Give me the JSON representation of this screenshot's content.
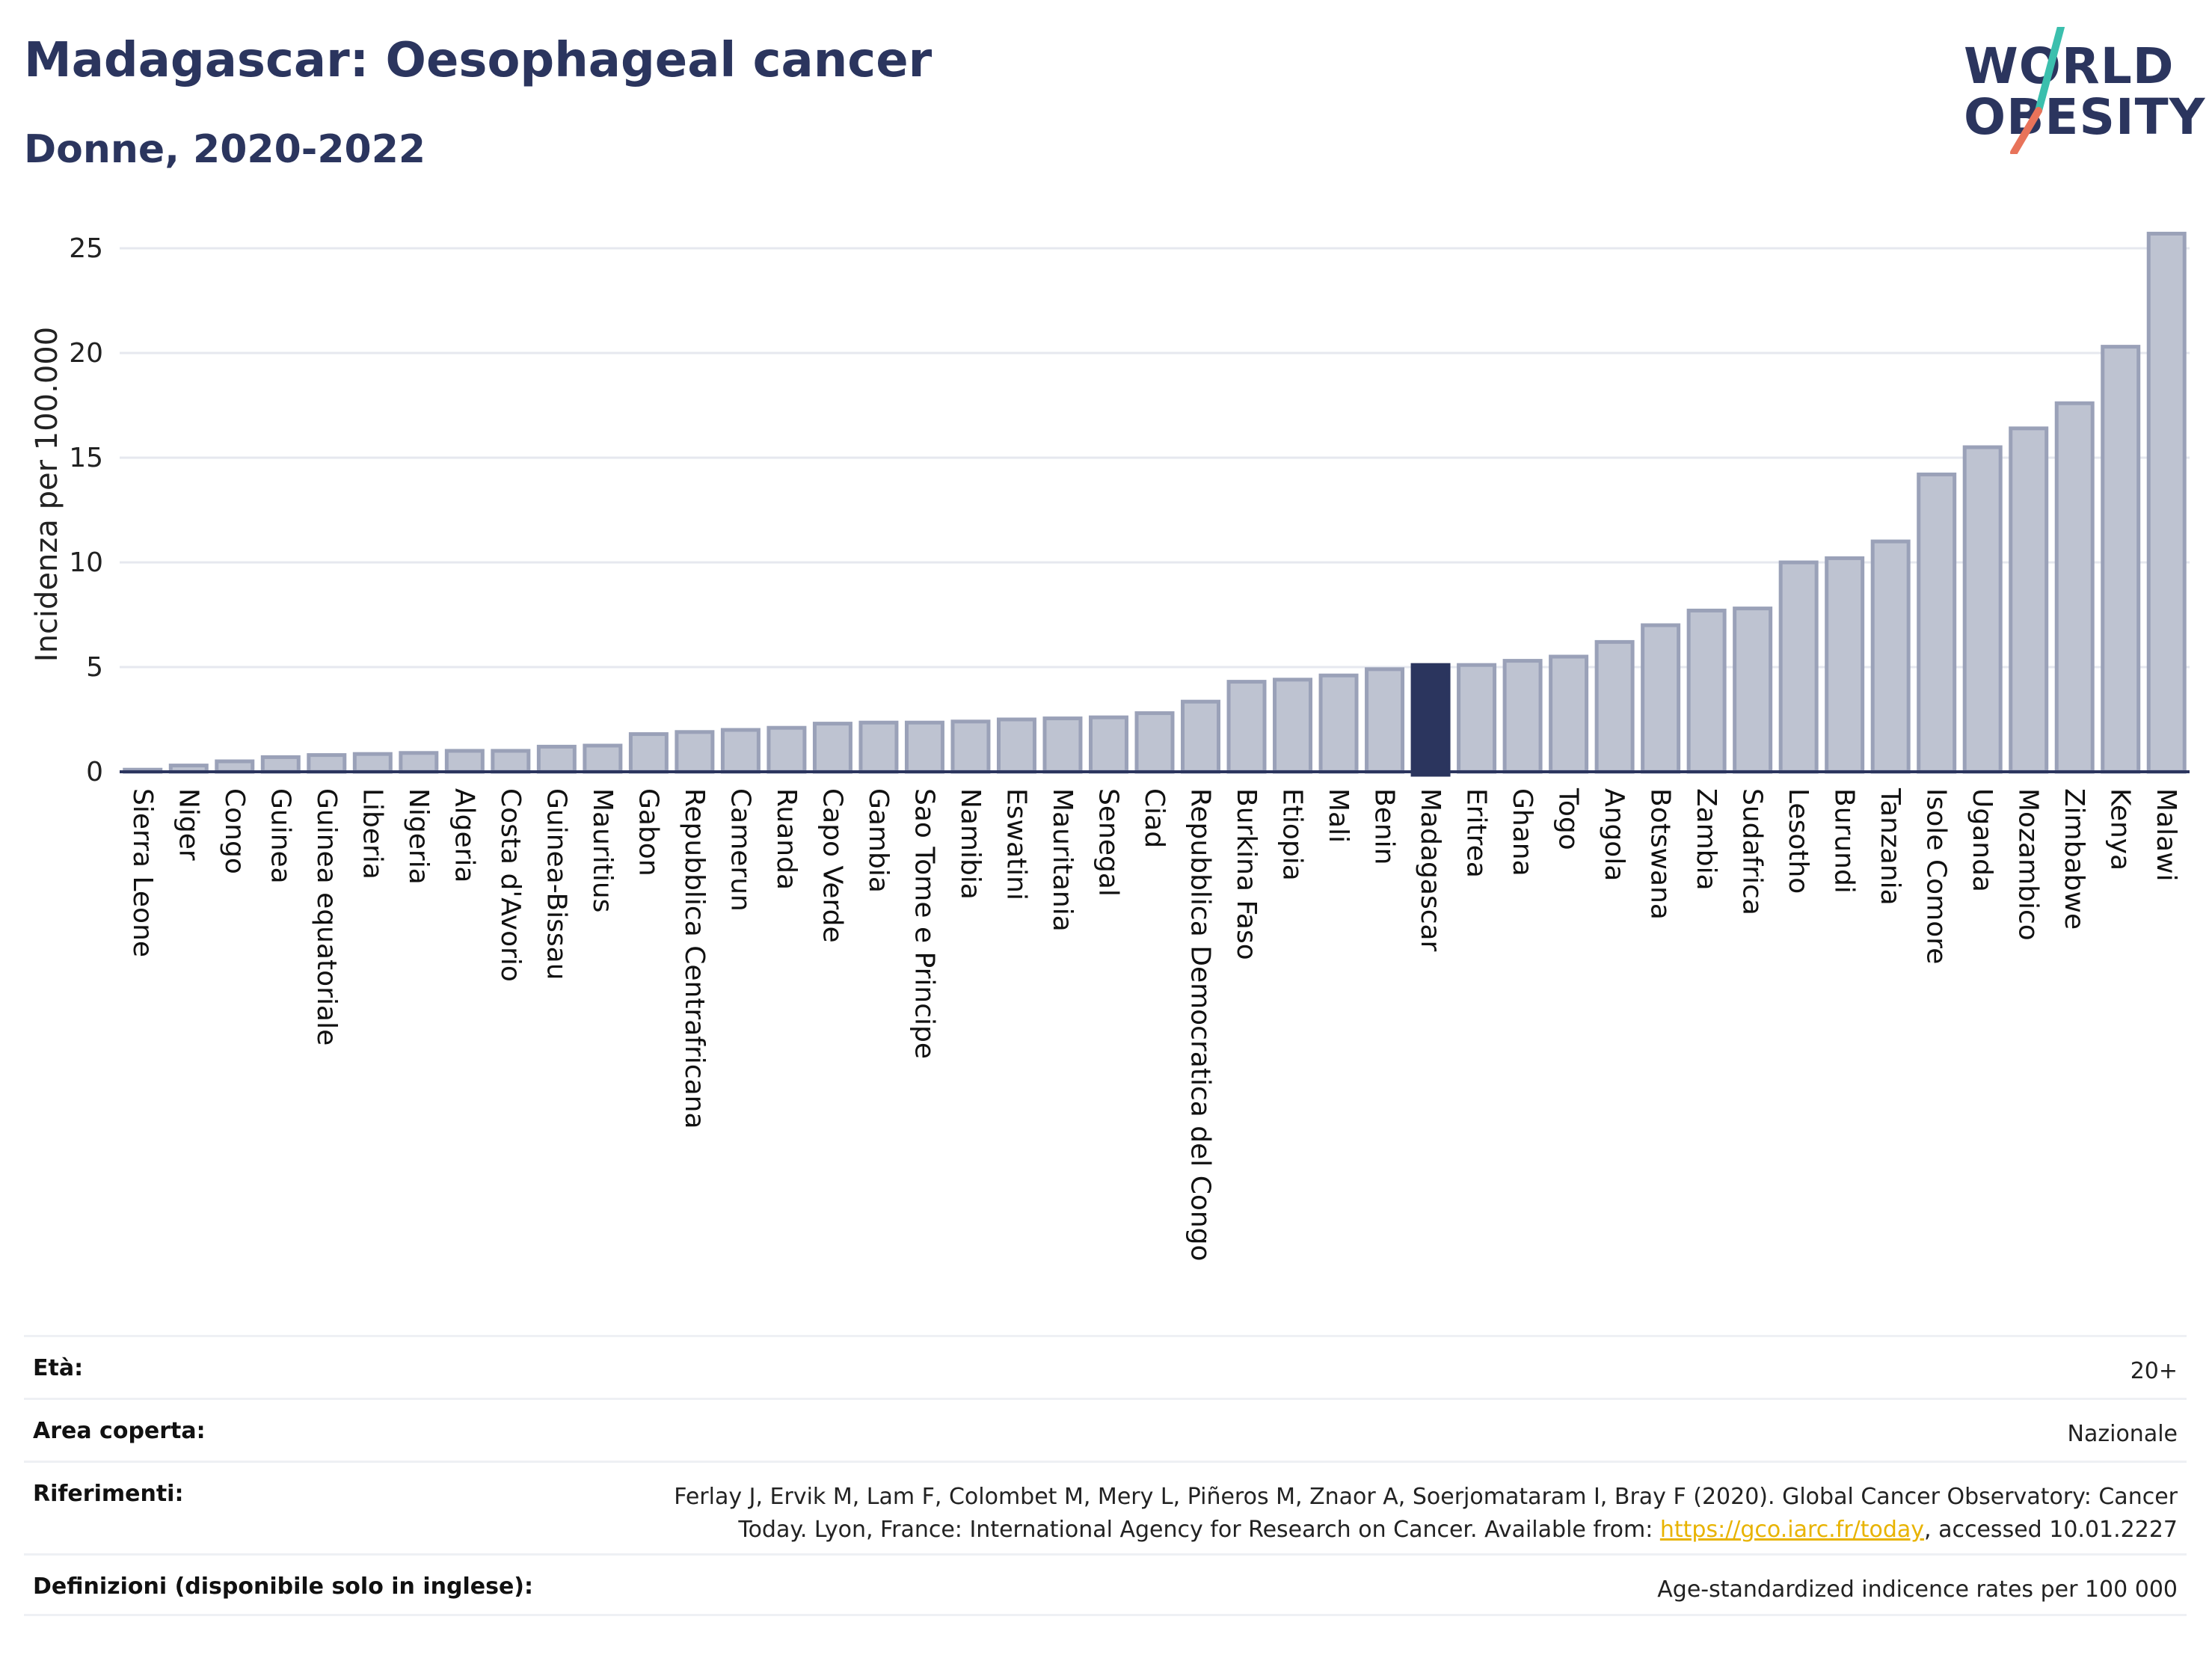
{
  "header": {
    "title": "Madagascar: Oesophageal cancer",
    "subtitle": "Donne, 2020-2022"
  },
  "logo": {
    "line1": "WORLD",
    "line2": "OBESITY"
  },
  "colors": {
    "bar_fill": "#bec3d1",
    "bar_stroke": "#9aa1b8",
    "highlight": "#2b355e",
    "slash_teal": "#3bbfad",
    "slash_red": "#e8735a",
    "grid": "#e6e8ef",
    "link": "#e8b300"
  },
  "chart_data": {
    "type": "bar",
    "title": "",
    "xlabel": "",
    "ylabel": "Incidenza per 100.000",
    "ylim": [
      0,
      26.5
    ],
    "yticks": [
      0,
      5,
      10,
      15,
      20,
      25
    ],
    "grid": true,
    "highlight": "Madagascar",
    "categories": [
      "Sierra Leone",
      "Niger",
      "Congo",
      "Guinea",
      "Guinea equatoriale",
      "Liberia",
      "Nigeria",
      "Algeria",
      "Costa d'Avorio",
      "Guinea-Bissau",
      "Mauritius",
      "Gabon",
      "Repubblica Centrafricana",
      "Camerun",
      "Ruanda",
      "Capo Verde",
      "Gambia",
      "Sao Tome e Principe",
      "Namibia",
      "Eswatini",
      "Mauritania",
      "Senegal",
      "Ciad",
      "Repubblica Democratica del Congo",
      "Burkina Faso",
      "Etiopia",
      "Mali",
      "Benin",
      "Madagascar",
      "Eritrea",
      "Ghana",
      "Togo",
      "Angola",
      "Botswana",
      "Zambia",
      "Sudafrica",
      "Lesotho",
      "Burundi",
      "Tanzania",
      "Isole Comore",
      "Uganda",
      "Mozambico",
      "Zimbabwe",
      "Kenya",
      "Malawi"
    ],
    "values": [
      0.1,
      0.3,
      0.5,
      0.7,
      0.8,
      0.85,
      0.9,
      1.0,
      1.0,
      1.2,
      1.25,
      1.8,
      1.9,
      2.0,
      2.1,
      2.3,
      2.35,
      2.35,
      2.4,
      2.5,
      2.55,
      2.6,
      2.8,
      3.35,
      4.3,
      4.4,
      4.6,
      4.9,
      5.1,
      5.1,
      5.3,
      5.5,
      6.2,
      7.0,
      7.7,
      7.8,
      10.0,
      10.2,
      11.0,
      14.2,
      15.5,
      16.4,
      17.6,
      20.3,
      25.7
    ]
  },
  "meta": {
    "age": {
      "label": "Età:",
      "value": "20+"
    },
    "area": {
      "label": "Area coperta:",
      "value": "Nazionale"
    },
    "refs": {
      "label": "Riferimenti:",
      "line1": "Ferlay J, Ervik M, Lam F, Colombet M, Mery L, Piñeros M, Znaor A, Soerjomataram I, Bray F (2020). Global Cancer Observatory: Cancer",
      "line2_pre": "Today. Lyon, France: International Agency for Research on Cancer. Available from: ",
      "link": "https://gco.iarc.fr/today",
      "line2_post": ", accessed 10.01.2227"
    },
    "defs": {
      "label": "Definizioni (disponibile solo in inglese):",
      "value": "Age-standardized indicence rates per 100 000"
    }
  }
}
